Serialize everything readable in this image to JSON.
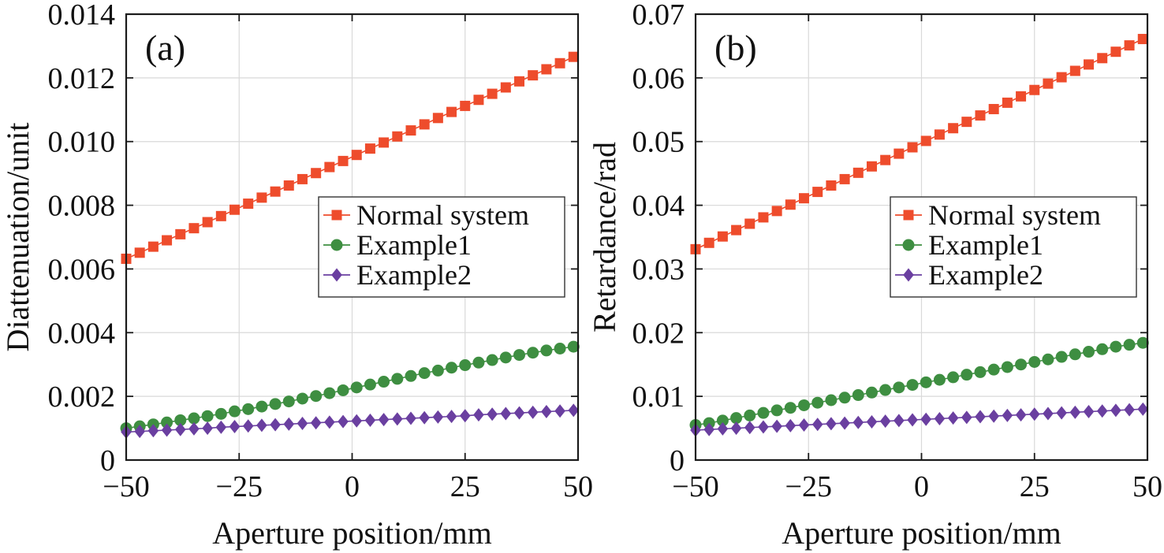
{
  "chart_data": [
    {
      "type": "line",
      "panel_label": "(a)",
      "xlabel": "Aperture position/mm",
      "ylabel": "Diattenuation/unit",
      "xlim": [
        -50,
        50
      ],
      "ylim": [
        0,
        0.014
      ],
      "xticks": [
        -50,
        -25,
        0,
        25,
        50
      ],
      "xtick_labels": [
        "−50",
        "−25",
        "0",
        "25",
        "50"
      ],
      "yticks": [
        0,
        0.002,
        0.004,
        0.006,
        0.008,
        0.01,
        0.012,
        0.014
      ],
      "ytick_labels": [
        "0",
        "0.002",
        "0.004",
        "0.006",
        "0.008",
        "0.010",
        "0.012",
        "0.014"
      ],
      "grid": true,
      "legend_position": "right-middle",
      "x": [
        -50,
        -47,
        -44,
        -41,
        -38,
        -35,
        -32,
        -29,
        -26,
        -23,
        -20,
        -17,
        -14,
        -11,
        -8,
        -5,
        -2,
        1,
        4,
        7,
        10,
        13,
        16,
        19,
        22,
        25,
        28,
        31,
        34,
        37,
        40,
        43,
        46,
        49
      ],
      "series": [
        {
          "name": "Normal system",
          "marker": "square",
          "color": "#ee4c2c",
          "values": [
            0.00632,
            0.00651,
            0.0067,
            0.0069,
            0.00709,
            0.00728,
            0.00747,
            0.00766,
            0.00786,
            0.00805,
            0.00824,
            0.00843,
            0.00862,
            0.00882,
            0.00901,
            0.0092,
            0.00939,
            0.00958,
            0.00978,
            0.00997,
            0.01016,
            0.01035,
            0.01054,
            0.01074,
            0.01093,
            0.01112,
            0.01131,
            0.0115,
            0.0117,
            0.01189,
            0.01208,
            0.01227,
            0.01246,
            0.01266
          ]
        },
        {
          "name": "Example1",
          "marker": "circle",
          "color": "#3e8e41",
          "values": [
            0.001,
            0.00106,
            0.00112,
            0.00118,
            0.00125,
            0.00131,
            0.00138,
            0.00145,
            0.00153,
            0.0016,
            0.00168,
            0.00176,
            0.00184,
            0.00193,
            0.00201,
            0.0021,
            0.00219,
            0.00228,
            0.00237,
            0.00246,
            0.00255,
            0.00264,
            0.00273,
            0.00281,
            0.0029,
            0.00298,
            0.00306,
            0.00314,
            0.00322,
            0.0033,
            0.00337,
            0.00344,
            0.0035,
            0.00356
          ]
        },
        {
          "name": "Example2",
          "marker": "diamond",
          "color": "#6a3fa0",
          "values": [
            0.00088,
            0.0009,
            0.00092,
            0.00094,
            0.00096,
            0.00098,
            0.001,
            0.00103,
            0.00105,
            0.00107,
            0.00109,
            0.00111,
            0.00113,
            0.00115,
            0.00117,
            0.00119,
            0.00121,
            0.00123,
            0.00125,
            0.00127,
            0.00129,
            0.00131,
            0.00133,
            0.00135,
            0.00137,
            0.00139,
            0.00142,
            0.00144,
            0.00146,
            0.00148,
            0.0015,
            0.00152,
            0.00154,
            0.00156
          ]
        }
      ]
    },
    {
      "type": "line",
      "panel_label": "(b)",
      "xlabel": "Aperture position/mm",
      "ylabel": "Retardance/rad",
      "xlim": [
        -50,
        50
      ],
      "ylim": [
        0,
        0.07
      ],
      "xticks": [
        -50,
        -25,
        0,
        25,
        50
      ],
      "xtick_labels": [
        "−50",
        "−25",
        "0",
        "25",
        "50"
      ],
      "yticks": [
        0,
        0.01,
        0.02,
        0.03,
        0.04,
        0.05,
        0.06,
        0.07
      ],
      "ytick_labels": [
        "0",
        "0.01",
        "0.02",
        "0.03",
        "0.04",
        "0.05",
        "0.06",
        "0.07"
      ],
      "grid": true,
      "legend_position": "right-middle",
      "x": [
        -50,
        -47,
        -44,
        -41,
        -38,
        -35,
        -32,
        -29,
        -26,
        -23,
        -20,
        -17,
        -14,
        -11,
        -8,
        -5,
        -2,
        1,
        4,
        7,
        10,
        13,
        16,
        19,
        22,
        25,
        28,
        31,
        34,
        37,
        40,
        43,
        46,
        49
      ],
      "series": [
        {
          "name": "Normal system",
          "marker": "square",
          "color": "#ee4c2c",
          "values": [
            0.0331,
            0.0341,
            0.0351,
            0.0361,
            0.0371,
            0.0381,
            0.0391,
            0.0401,
            0.0411,
            0.0421,
            0.0431,
            0.0441,
            0.0451,
            0.0461,
            0.0471,
            0.0481,
            0.0491,
            0.0501,
            0.0511,
            0.0521,
            0.0531,
            0.0541,
            0.0551,
            0.0561,
            0.0571,
            0.0581,
            0.0591,
            0.0601,
            0.0611,
            0.0621,
            0.0631,
            0.0641,
            0.0651,
            0.0661
          ]
        },
        {
          "name": "Example1",
          "marker": "circle",
          "color": "#3e8e41",
          "values": [
            0.0055,
            0.0058,
            0.0062,
            0.0066,
            0.007,
            0.0074,
            0.0078,
            0.0082,
            0.0086,
            0.009,
            0.0094,
            0.0098,
            0.0102,
            0.0106,
            0.011,
            0.0114,
            0.0118,
            0.0122,
            0.0126,
            0.013,
            0.0134,
            0.0138,
            0.0142,
            0.0146,
            0.015,
            0.0154,
            0.0158,
            0.0162,
            0.0166,
            0.017,
            0.0174,
            0.0178,
            0.0181,
            0.0184
          ]
        },
        {
          "name": "Example2",
          "marker": "diamond",
          "color": "#6a3fa0",
          "values": [
            0.0047,
            0.0048,
            0.0049,
            0.005,
            0.0051,
            0.0052,
            0.0053,
            0.0054,
            0.0055,
            0.0056,
            0.0057,
            0.0058,
            0.0059,
            0.006,
            0.0061,
            0.0062,
            0.0063,
            0.0064,
            0.0065,
            0.0066,
            0.0067,
            0.0068,
            0.0069,
            0.007,
            0.0071,
            0.0072,
            0.0073,
            0.0074,
            0.0075,
            0.0076,
            0.0077,
            0.0078,
            0.0079,
            0.008
          ]
        }
      ]
    }
  ]
}
